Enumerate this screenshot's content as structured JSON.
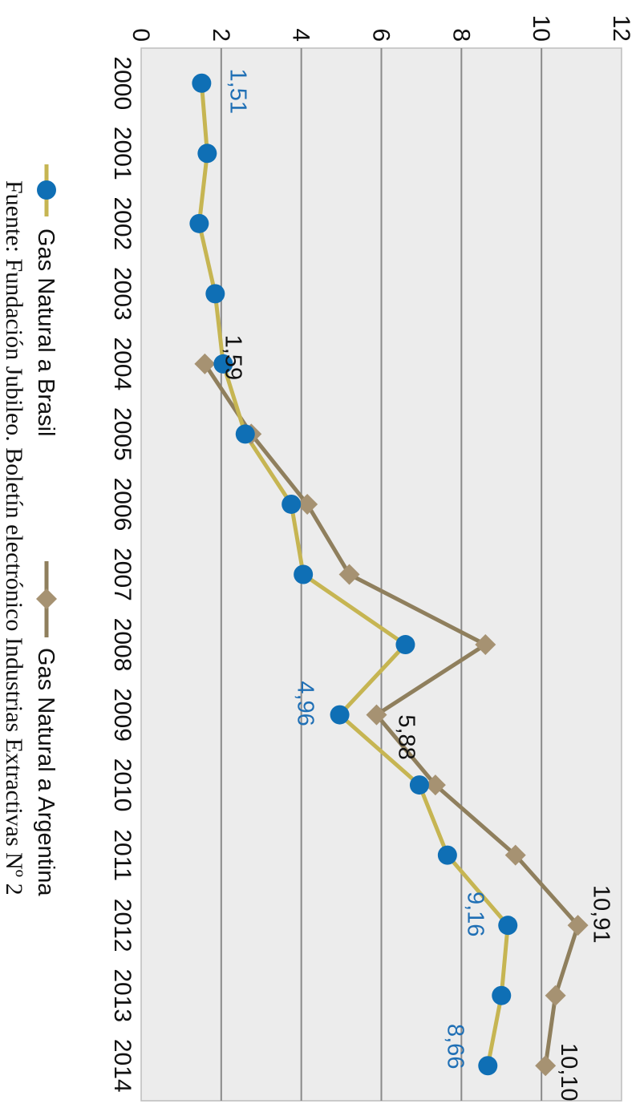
{
  "chart_data": {
    "type": "line",
    "categories": [
      "2000",
      "2001",
      "2002",
      "2003",
      "2004",
      "2005",
      "2006",
      "2007",
      "2008",
      "2009",
      "2010",
      "2011",
      "2012",
      "2013",
      "2014"
    ],
    "ylim": [
      0,
      12
    ],
    "yticks": [
      "0",
      "2",
      "4",
      "6",
      "8",
      "10",
      "12"
    ],
    "grid": true,
    "legend_position": "bottom",
    "series": [
      {
        "name": "Gas Natural a Brasil",
        "line_color": "#c6b552",
        "marker": "circle",
        "marker_color": "#0f6fb5",
        "values": [
          1.51,
          1.65,
          1.45,
          1.85,
          2.05,
          2.6,
          3.75,
          4.05,
          6.6,
          4.96,
          6.95,
          7.65,
          9.16,
          9.0,
          8.66
        ]
      },
      {
        "name": "Gas Natural a Argentina",
        "line_color": "#8f7f5d",
        "marker": "diamond",
        "marker_color": "#a69272",
        "values": [
          null,
          null,
          null,
          null,
          1.59,
          2.75,
          4.15,
          5.2,
          8.6,
          5.88,
          7.35,
          9.35,
          10.91,
          10.35,
          10.1
        ]
      }
    ],
    "annotations": [
      {
        "series": 0,
        "index": 0,
        "text": "1,51",
        "color": "#1f6fb5"
      },
      {
        "series": 0,
        "index": 9,
        "text": "4,96",
        "color": "#1f6fb5"
      },
      {
        "series": 0,
        "index": 12,
        "text": "9,16",
        "color": "#1f6fb5"
      },
      {
        "series": 0,
        "index": 14,
        "text": "8,66",
        "color": "#1f6fb5"
      },
      {
        "series": 1,
        "index": 4,
        "text": "1,59",
        "color": "#111111"
      },
      {
        "series": 1,
        "index": 9,
        "text": "5,88",
        "color": "#111111"
      },
      {
        "series": 1,
        "index": 12,
        "text": "10,91",
        "color": "#111111"
      },
      {
        "series": 1,
        "index": 14,
        "text": "10,10",
        "color": "#111111"
      }
    ],
    "source": "Fuente: Fundación Jubileo. Boletín electrónico Industrias Extractivas Nº 2"
  },
  "colors": {
    "plot_background": "#ececec",
    "grid": "#8a8a8a"
  }
}
